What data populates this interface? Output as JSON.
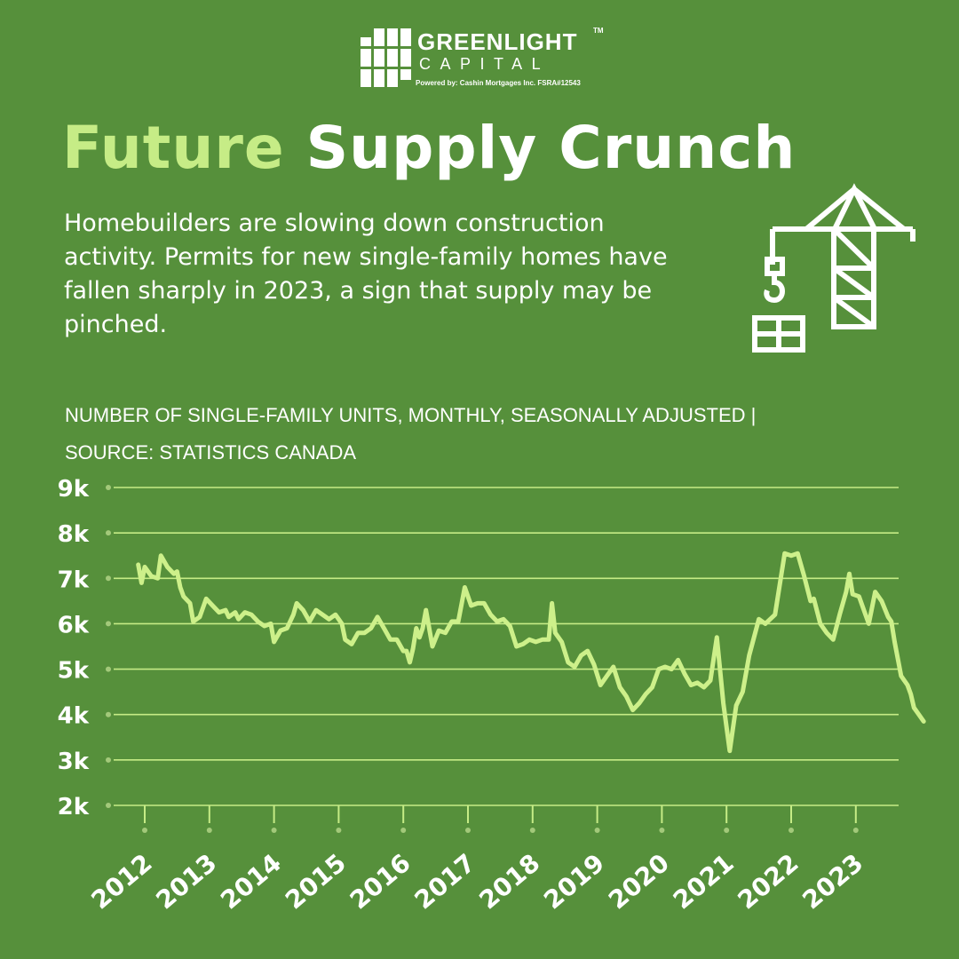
{
  "brand": {
    "name": "GREENLIGHT",
    "trademark": "TM",
    "sub": "CAPITAL",
    "powered_by": "Powered by:  Cashin Mortgages Inc.  FSRA#12543"
  },
  "headline": {
    "word1": "Future",
    "word2": "Supply Crunch"
  },
  "description": "Homebuilders are slowing down construction activity. Permits for new single-family homes have fallen sharply in 2023, a sign that supply may be pinched.",
  "chart_subtitle_line1": "NUMBER OF SINGLE-FAMILY UNITS, MONTHLY, SEASONALLY ADJUSTED |",
  "chart_subtitle_line2": "SOURCE: STATISTICS CANADA",
  "icons": {
    "logo": "grid-logo-icon",
    "illustration": "construction-crane-icon"
  },
  "colors": {
    "background": "#56903b",
    "accent": "#c6ec86",
    "line": "#cdf08a",
    "text": "#ffffff",
    "dot": "#a3c97a"
  },
  "chart_data": {
    "type": "line",
    "title": "",
    "xlabel": "",
    "ylabel": "",
    "ylim": [
      2000,
      9000
    ],
    "y_ticks": [
      {
        "value": 9000,
        "label": "9k"
      },
      {
        "value": 8000,
        "label": "8k"
      },
      {
        "value": 7000,
        "label": "7k"
      },
      {
        "value": 6000,
        "label": "6k"
      },
      {
        "value": 5000,
        "label": "5k"
      },
      {
        "value": 4000,
        "label": "4k"
      },
      {
        "value": 3000,
        "label": "3k"
      },
      {
        "value": 2000,
        "label": "2k"
      }
    ],
    "x_ticks": [
      "2012",
      "2013",
      "2014",
      "2015",
      "2016",
      "2017",
      "2018",
      "2019",
      "2020",
      "2021",
      "2022",
      "2023"
    ],
    "grid": true,
    "series": [
      {
        "values": [
          {
            "x": 2011.9,
            "y": 7300
          },
          {
            "x": 2011.95,
            "y": 6900
          },
          {
            "x": 2012.0,
            "y": 7250
          },
          {
            "x": 2012.1,
            "y": 7050
          },
          {
            "x": 2012.2,
            "y": 7000
          },
          {
            "x": 2012.25,
            "y": 7500
          },
          {
            "x": 2012.35,
            "y": 7250
          },
          {
            "x": 2012.45,
            "y": 7100
          },
          {
            "x": 2012.5,
            "y": 7150
          },
          {
            "x": 2012.55,
            "y": 6800
          },
          {
            "x": 2012.6,
            "y": 6600
          },
          {
            "x": 2012.7,
            "y": 6450
          },
          {
            "x": 2012.75,
            "y": 6050
          },
          {
            "x": 2012.85,
            "y": 6150
          },
          {
            "x": 2012.95,
            "y": 6550
          },
          {
            "x": 2013.05,
            "y": 6400
          },
          {
            "x": 2013.15,
            "y": 6250
          },
          {
            "x": 2013.25,
            "y": 6300
          },
          {
            "x": 2013.3,
            "y": 6150
          },
          {
            "x": 2013.4,
            "y": 6250
          },
          {
            "x": 2013.45,
            "y": 6100
          },
          {
            "x": 2013.55,
            "y": 6250
          },
          {
            "x": 2013.65,
            "y": 6200
          },
          {
            "x": 2013.75,
            "y": 6050
          },
          {
            "x": 2013.85,
            "y": 5950
          },
          {
            "x": 2013.95,
            "y": 6000
          },
          {
            "x": 2014.0,
            "y": 5600
          },
          {
            "x": 2014.1,
            "y": 5850
          },
          {
            "x": 2014.2,
            "y": 5900
          },
          {
            "x": 2014.3,
            "y": 6200
          },
          {
            "x": 2014.35,
            "y": 6450
          },
          {
            "x": 2014.45,
            "y": 6300
          },
          {
            "x": 2014.55,
            "y": 6050
          },
          {
            "x": 2014.65,
            "y": 6300
          },
          {
            "x": 2014.75,
            "y": 6200
          },
          {
            "x": 2014.85,
            "y": 6100
          },
          {
            "x": 2014.95,
            "y": 6200
          },
          {
            "x": 2015.05,
            "y": 6000
          },
          {
            "x": 2015.1,
            "y": 5650
          },
          {
            "x": 2015.2,
            "y": 5550
          },
          {
            "x": 2015.3,
            "y": 5800
          },
          {
            "x": 2015.4,
            "y": 5800
          },
          {
            "x": 2015.5,
            "y": 5900
          },
          {
            "x": 2015.6,
            "y": 6150
          },
          {
            "x": 2015.7,
            "y": 5900
          },
          {
            "x": 2015.8,
            "y": 5650
          },
          {
            "x": 2015.9,
            "y": 5650
          },
          {
            "x": 2016.0,
            "y": 5400
          },
          {
            "x": 2016.05,
            "y": 5400
          },
          {
            "x": 2016.1,
            "y": 5150
          },
          {
            "x": 2016.15,
            "y": 5450
          },
          {
            "x": 2016.2,
            "y": 5900
          },
          {
            "x": 2016.25,
            "y": 5700
          },
          {
            "x": 2016.3,
            "y": 5900
          },
          {
            "x": 2016.35,
            "y": 6300
          },
          {
            "x": 2016.45,
            "y": 5500
          },
          {
            "x": 2016.55,
            "y": 5850
          },
          {
            "x": 2016.65,
            "y": 5800
          },
          {
            "x": 2016.75,
            "y": 6050
          },
          {
            "x": 2016.85,
            "y": 6050
          },
          {
            "x": 2016.95,
            "y": 6800
          },
          {
            "x": 2017.05,
            "y": 6400
          },
          {
            "x": 2017.15,
            "y": 6450
          },
          {
            "x": 2017.25,
            "y": 6450
          },
          {
            "x": 2017.35,
            "y": 6200
          },
          {
            "x": 2017.45,
            "y": 6050
          },
          {
            "x": 2017.55,
            "y": 6100
          },
          {
            "x": 2017.65,
            "y": 5950
          },
          {
            "x": 2017.75,
            "y": 5500
          },
          {
            "x": 2017.85,
            "y": 5550
          },
          {
            "x": 2017.95,
            "y": 5650
          },
          {
            "x": 2018.05,
            "y": 5600
          },
          {
            "x": 2018.15,
            "y": 5650
          },
          {
            "x": 2018.25,
            "y": 5650
          },
          {
            "x": 2018.3,
            "y": 6450
          },
          {
            "x": 2018.35,
            "y": 5800
          },
          {
            "x": 2018.45,
            "y": 5600
          },
          {
            "x": 2018.55,
            "y": 5150
          },
          {
            "x": 2018.65,
            "y": 5050
          },
          {
            "x": 2018.75,
            "y": 5300
          },
          {
            "x": 2018.85,
            "y": 5400
          },
          {
            "x": 2018.95,
            "y": 5100
          },
          {
            "x": 2019.05,
            "y": 4650
          },
          {
            "x": 2019.15,
            "y": 4850
          },
          {
            "x": 2019.25,
            "y": 5050
          },
          {
            "x": 2019.35,
            "y": 4600
          },
          {
            "x": 2019.45,
            "y": 4400
          },
          {
            "x": 2019.55,
            "y": 4100
          },
          {
            "x": 2019.65,
            "y": 4250
          },
          {
            "x": 2019.75,
            "y": 4450
          },
          {
            "x": 2019.85,
            "y": 4600
          },
          {
            "x": 2019.95,
            "y": 5000
          },
          {
            "x": 2020.05,
            "y": 5050
          },
          {
            "x": 2020.15,
            "y": 5000
          },
          {
            "x": 2020.25,
            "y": 5200
          },
          {
            "x": 2020.35,
            "y": 4900
          },
          {
            "x": 2020.45,
            "y": 4650
          },
          {
            "x": 2020.55,
            "y": 4700
          },
          {
            "x": 2020.65,
            "y": 4600
          },
          {
            "x": 2020.75,
            "y": 4750
          },
          {
            "x": 2020.85,
            "y": 5700
          },
          {
            "x": 2020.95,
            "y": 4250
          },
          {
            "x": 2021.05,
            "y": 3200
          },
          {
            "x": 2021.15,
            "y": 4200
          },
          {
            "x": 2021.25,
            "y": 4500
          },
          {
            "x": 2021.35,
            "y": 5300
          },
          {
            "x": 2021.5,
            "y": 6100
          },
          {
            "x": 2021.6,
            "y": 6000
          },
          {
            "x": 2021.75,
            "y": 6200
          },
          {
            "x": 2021.9,
            "y": 7550
          },
          {
            "x": 2022.0,
            "y": 7500
          },
          {
            "x": 2022.1,
            "y": 7550
          },
          {
            "x": 2022.2,
            "y": 7050
          },
          {
            "x": 2022.3,
            "y": 6500
          },
          {
            "x": 2022.35,
            "y": 6550
          },
          {
            "x": 2022.45,
            "y": 6000
          },
          {
            "x": 2022.55,
            "y": 5800
          },
          {
            "x": 2022.65,
            "y": 5650
          },
          {
            "x": 2022.75,
            "y": 6200
          },
          {
            "x": 2022.85,
            "y": 6700
          },
          {
            "x": 2022.9,
            "y": 7100
          },
          {
            "x": 2022.95,
            "y": 6650
          },
          {
            "x": 2023.05,
            "y": 6600
          },
          {
            "x": 2023.15,
            "y": 6200
          },
          {
            "x": 2023.2,
            "y": 6000
          },
          {
            "x": 2023.3,
            "y": 6700
          },
          {
            "x": 2023.4,
            "y": 6500
          },
          {
            "x": 2023.5,
            "y": 6150
          },
          {
            "x": 2023.55,
            "y": 6050
          },
          {
            "x": 2023.6,
            "y": 5600
          },
          {
            "x": 2023.7,
            "y": 4850
          },
          {
            "x": 2023.8,
            "y": 4650
          },
          {
            "x": 2023.85,
            "y": 4450
          },
          {
            "x": 2023.9,
            "y": 4150
          },
          {
            "x": 2023.95,
            "y": 4050
          },
          {
            "x": 2024.05,
            "y": 3850
          }
        ]
      }
    ]
  }
}
